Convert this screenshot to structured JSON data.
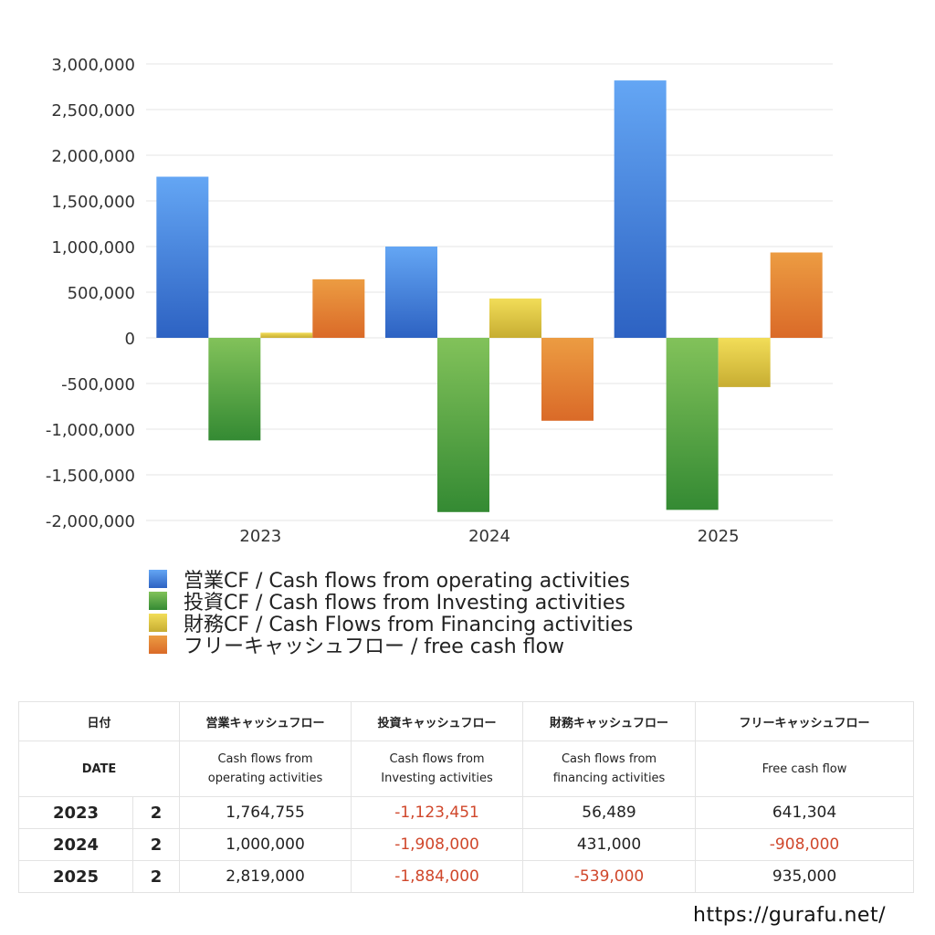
{
  "chart_data": {
    "type": "bar",
    "categories": [
      "2023",
      "2024",
      "2025"
    ],
    "series": [
      {
        "name": "営業CF / Cash flows from operating activities",
        "values": [
          1764755,
          1000000,
          2819000
        ]
      },
      {
        "name": "投資CF / Cash flows from Investing activities",
        "values": [
          -1123451,
          -1908000,
          -1884000
        ]
      },
      {
        "name": "財務CF / Cash Flows from Financing activities",
        "values": [
          56489,
          431000,
          -539000
        ]
      },
      {
        "name": "フリーキャッシュフロー / free cash flow",
        "values": [
          641304,
          -908000,
          935000
        ]
      }
    ],
    "ylim": [
      -2000000,
      3000000
    ],
    "yticks": [
      3000000,
      2500000,
      2000000,
      1500000,
      1000000,
      500000,
      0,
      -500000,
      -1000000,
      -1500000,
      -2000000
    ],
    "ytick_labels": [
      "3,000,000",
      "2,500,000",
      "2,000,000",
      "1,500,000",
      "1,000,000",
      "500,000",
      "0",
      "-500,000",
      "-1,000,000",
      "-1,500,000",
      "-2,000,000"
    ],
    "grid": true,
    "legend_position": "bottom-left",
    "colors": [
      [
        "#64a6f4",
        "#2d62c2"
      ],
      [
        "#82c25a",
        "#348a33"
      ],
      [
        "#f2dd58",
        "#c7ad32"
      ],
      [
        "#ec9c42",
        "#da6a28"
      ]
    ]
  },
  "table": {
    "headers_ja": [
      "日付",
      "営業キャッシュフロー",
      "投資キャッシュフロー",
      "財務キャッシュフロー",
      "フリーキャッシュフロー"
    ],
    "headers_en": [
      "DATE",
      "Cash flows from\noperating activities",
      "Cash flows from\nInvesting activities",
      "Cash flows from\nfinancing activities",
      "Free cash flow"
    ],
    "rows": [
      {
        "year": "2023",
        "q": "2",
        "op": "1,764,755",
        "inv": "-1,123,451",
        "fin": "56,489",
        "fcf": "641,304"
      },
      {
        "year": "2024",
        "q": "2",
        "op": "1,000,000",
        "inv": "-1,908,000",
        "fin": "431,000",
        "fcf": "-908,000"
      },
      {
        "year": "2025",
        "q": "2",
        "op": "2,819,000",
        "inv": "-1,884,000",
        "fin": "-539,000",
        "fcf": "935,000"
      }
    ]
  },
  "site_url": "https://gurafu.net/"
}
